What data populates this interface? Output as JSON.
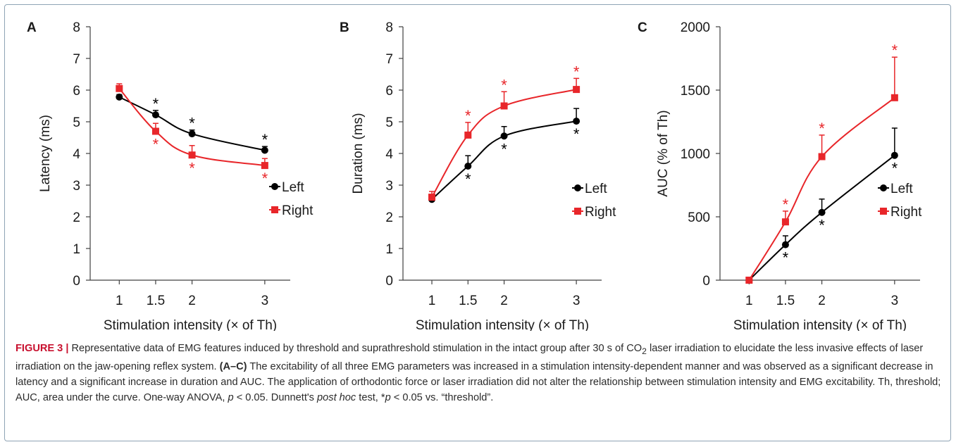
{
  "colors": {
    "left": "#000000",
    "right": "#e8262a",
    "axis": "#404040",
    "frame": "#8fa4b5",
    "caption_label": "#c8102e"
  },
  "chart_data": [
    {
      "panel": "A",
      "type": "line",
      "x": [
        1,
        1.5,
        2,
        3
      ],
      "xtick_labels": [
        "1",
        "1.5",
        "2",
        "3"
      ],
      "xlabel": "Stimulation intensity (× of Th)",
      "ylabel": "Latency (ms)",
      "ylim": [
        0,
        8
      ],
      "yticks": [
        0,
        1,
        2,
        3,
        4,
        5,
        6,
        7,
        8
      ],
      "legend_position": "right",
      "series": [
        {
          "name": "Left",
          "key": "left",
          "marker": "circle",
          "values": [
            5.78,
            5.22,
            4.62,
            4.1
          ],
          "errors": [
            0.08,
            0.14,
            0.12,
            0.12
          ],
          "stars": [
            "",
            "*",
            "*",
            "*"
          ],
          "star_side": "above"
        },
        {
          "name": "Right",
          "key": "right",
          "marker": "square",
          "values": [
            6.05,
            4.7,
            3.95,
            3.62
          ],
          "errors": [
            0.15,
            0.25,
            0.3,
            0.22
          ],
          "stars": [
            "",
            "*",
            "*",
            "*"
          ],
          "star_side": "below"
        }
      ]
    },
    {
      "panel": "B",
      "type": "line",
      "x": [
        1,
        1.5,
        2,
        3
      ],
      "xtick_labels": [
        "1",
        "1.5",
        "2",
        "3"
      ],
      "xlabel": "Stimulation intensity (× of Th)",
      "ylabel": "Duration (ms)",
      "ylim": [
        0,
        8
      ],
      "yticks": [
        0,
        1,
        2,
        3,
        4,
        5,
        6,
        7,
        8
      ],
      "legend_position": "right",
      "series": [
        {
          "name": "Left",
          "key": "left",
          "marker": "circle",
          "values": [
            2.55,
            3.6,
            4.55,
            5.02
          ],
          "errors": [
            0.12,
            0.33,
            0.3,
            0.4
          ],
          "stars": [
            "",
            "*",
            "*",
            "*"
          ],
          "star_side": "below"
        },
        {
          "name": "Right",
          "key": "right",
          "marker": "square",
          "values": [
            2.62,
            4.58,
            5.5,
            6.02
          ],
          "errors": [
            0.18,
            0.4,
            0.45,
            0.35
          ],
          "stars": [
            "",
            "*",
            "*",
            "*"
          ],
          "star_side": "above"
        }
      ]
    },
    {
      "panel": "C",
      "type": "line",
      "x": [
        1,
        1.5,
        2,
        3
      ],
      "xtick_labels": [
        "1",
        "1.5",
        "2",
        "3"
      ],
      "xlabel": "Stimulation intensity (× of Th)",
      "ylabel": "AUC (% of Th)",
      "ylim": [
        0,
        2000
      ],
      "yticks": [
        0,
        500,
        1000,
        1500,
        2000
      ],
      "legend_position": "right",
      "series": [
        {
          "name": "Left",
          "key": "left",
          "marker": "circle",
          "values": [
            0,
            280,
            535,
            985
          ],
          "errors": [
            0,
            70,
            105,
            215
          ],
          "stars": [
            "",
            "*",
            "*",
            "*"
          ],
          "star_side": "below"
        },
        {
          "name": "Right",
          "key": "right",
          "marker": "square",
          "values": [
            0,
            460,
            975,
            1440
          ],
          "errors": [
            0,
            85,
            170,
            320
          ],
          "stars": [
            "",
            "*",
            "*",
            "*"
          ],
          "star_side": "above"
        }
      ]
    }
  ],
  "caption": {
    "label": "FIGURE 3 |",
    "sentence1_pre": "Representative data of EMG features induced by threshold and suprathreshold stimulation in the intact group after 30 s of CO",
    "co2_sub": "2",
    "sentence1_post": " laser irradiation to elucidate the less invasive effects of laser irradiation on the jaw-opening reflex system.",
    "panels_ref": "(A–C)",
    "body": "The excitability of all three EMG parameters was increased in a stimulation intensity-dependent manner and was observed as a significant decrease in latency and a significant increase in duration and AUC. The application of orthodontic force or laser irradiation did not alter the relationship between stimulation intensity and EMG excitability. Th, threshold; AUC, area under the curve.",
    "stats_1": "One-way ANOVA,",
    "p_symbol": "p",
    "stats_2": "< 0.05. Dunnett's",
    "post_hoc": "post hoc",
    "stats_3": "test, *",
    "stats_4": "< 0.05 vs. “threshold”."
  }
}
